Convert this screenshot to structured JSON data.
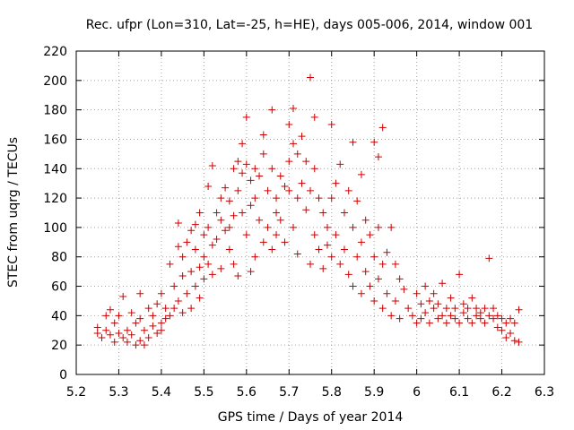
{
  "chart_data": {
    "type": "scatter",
    "title": "Rec. ufpr (Lon=310, Lat=-25, h=HE), days 005-006, 2014, window 001",
    "xlabel": "GPS time / Days of year 2014",
    "ylabel": "STEC from uqrg / TECUs",
    "xlim": [
      5.2,
      6.3
    ],
    "ylim": [
      0,
      220
    ],
    "x_ticks": [
      "5.2",
      "5.3",
      "5.4",
      "5.5",
      "5.6",
      "5.7",
      "5.8",
      "5.9",
      "6",
      "6.1",
      "6.2",
      "6.3"
    ],
    "y_ticks": [
      "0",
      "20",
      "40",
      "60",
      "80",
      "100",
      "120",
      "140",
      "160",
      "180",
      "200",
      "220"
    ],
    "grid": true,
    "marker": "+",
    "color": "#cc0000",
    "series": [
      {
        "points": [
          [
            5.25,
            32
          ],
          [
            5.25,
            28
          ],
          [
            5.26,
            25
          ],
          [
            5.27,
            30
          ],
          [
            5.27,
            40
          ],
          [
            5.28,
            27
          ],
          [
            5.28,
            44
          ],
          [
            5.29,
            22
          ],
          [
            5.29,
            35
          ],
          [
            5.3,
            28
          ],
          [
            5.3,
            40
          ],
          [
            5.31,
            25
          ],
          [
            5.31,
            53
          ],
          [
            5.32,
            30
          ],
          [
            5.32,
            22
          ],
          [
            5.33,
            42
          ],
          [
            5.33,
            27
          ],
          [
            5.34,
            20
          ],
          [
            5.34,
            35
          ],
          [
            5.35,
            38
          ],
          [
            5.35,
            55
          ],
          [
            5.35,
            23
          ],
          [
            5.36,
            30
          ],
          [
            5.36,
            20
          ],
          [
            5.37,
            45
          ],
          [
            5.37,
            25
          ],
          [
            5.38,
            33
          ],
          [
            5.38,
            40
          ],
          [
            5.39,
            28
          ],
          [
            5.39,
            48
          ],
          [
            5.4,
            35
          ],
          [
            5.4,
            55
          ],
          [
            5.4,
            30
          ],
          [
            5.41,
            45
          ],
          [
            5.41,
            38
          ],
          [
            5.42,
            75
          ],
          [
            5.42,
            40
          ],
          [
            5.43,
            60
          ],
          [
            5.43,
            45
          ],
          [
            5.44,
            87
          ],
          [
            5.44,
            103
          ],
          [
            5.44,
            50
          ],
          [
            5.45,
            67
          ],
          [
            5.45,
            80
          ],
          [
            5.45,
            42
          ],
          [
            5.46,
            90
          ],
          [
            5.46,
            55
          ],
          [
            5.47,
            98
          ],
          [
            5.47,
            70
          ],
          [
            5.47,
            45
          ],
          [
            5.48,
            102
          ],
          [
            5.48,
            85
          ],
          [
            5.48,
            60
          ],
          [
            5.49,
            110
          ],
          [
            5.49,
            73
          ],
          [
            5.49,
            52
          ],
          [
            5.5,
            95
          ],
          [
            5.5,
            80
          ],
          [
            5.5,
            65
          ],
          [
            5.51,
            128
          ],
          [
            5.51,
            100
          ],
          [
            5.51,
            75
          ],
          [
            5.52,
            142
          ],
          [
            5.52,
            88
          ],
          [
            5.52,
            68
          ],
          [
            5.53,
            110
          ],
          [
            5.53,
            92
          ],
          [
            5.54,
            120
          ],
          [
            5.54,
            105
          ],
          [
            5.54,
            72
          ],
          [
            5.55,
            127
          ],
          [
            5.55,
            98
          ],
          [
            5.56,
            118
          ],
          [
            5.56,
            85
          ],
          [
            5.56,
            100
          ],
          [
            5.57,
            140
          ],
          [
            5.57,
            108
          ],
          [
            5.57,
            75
          ],
          [
            5.58,
            145
          ],
          [
            5.58,
            125
          ],
          [
            5.58,
            67
          ],
          [
            5.59,
            157
          ],
          [
            5.59,
            137
          ],
          [
            5.59,
            110
          ],
          [
            5.6,
            175
          ],
          [
            5.6,
            143
          ],
          [
            5.6,
            95
          ],
          [
            5.61,
            132
          ],
          [
            5.61,
            115
          ],
          [
            5.61,
            70
          ],
          [
            5.62,
            140
          ],
          [
            5.62,
            120
          ],
          [
            5.62,
            80
          ],
          [
            5.63,
            135
          ],
          [
            5.63,
            105
          ],
          [
            5.64,
            163
          ],
          [
            5.64,
            150
          ],
          [
            5.64,
            90
          ],
          [
            5.65,
            125
          ],
          [
            5.65,
            100
          ],
          [
            5.66,
            180
          ],
          [
            5.66,
            140
          ],
          [
            5.66,
            85
          ],
          [
            5.67,
            120
          ],
          [
            5.67,
            110
          ],
          [
            5.67,
            95
          ],
          [
            5.68,
            135
          ],
          [
            5.68,
            105
          ],
          [
            5.69,
            128
          ],
          [
            5.69,
            90
          ],
          [
            5.7,
            170
          ],
          [
            5.7,
            145
          ],
          [
            5.7,
            125
          ],
          [
            5.71,
            181
          ],
          [
            5.71,
            157
          ],
          [
            5.71,
            100
          ],
          [
            5.72,
            150
          ],
          [
            5.72,
            120
          ],
          [
            5.72,
            82
          ],
          [
            5.73,
            162
          ],
          [
            5.73,
            130
          ],
          [
            5.74,
            145
          ],
          [
            5.74,
            112
          ],
          [
            5.75,
            202
          ],
          [
            5.75,
            125
          ],
          [
            5.75,
            75
          ],
          [
            5.76,
            175
          ],
          [
            5.76,
            140
          ],
          [
            5.76,
            95
          ],
          [
            5.77,
            120
          ],
          [
            5.77,
            85
          ],
          [
            5.78,
            110
          ],
          [
            5.78,
            72
          ],
          [
            5.79,
            100
          ],
          [
            5.79,
            88
          ],
          [
            5.8,
            170
          ],
          [
            5.8,
            120
          ],
          [
            5.8,
            80
          ],
          [
            5.81,
            130
          ],
          [
            5.81,
            95
          ],
          [
            5.82,
            143
          ],
          [
            5.82,
            75
          ],
          [
            5.83,
            110
          ],
          [
            5.83,
            85
          ],
          [
            5.84,
            125
          ],
          [
            5.84,
            68
          ],
          [
            5.85,
            158
          ],
          [
            5.85,
            100
          ],
          [
            5.85,
            60
          ],
          [
            5.86,
            118
          ],
          [
            5.86,
            80
          ],
          [
            5.87,
            136
          ],
          [
            5.87,
            90
          ],
          [
            5.87,
            55
          ],
          [
            5.88,
            105
          ],
          [
            5.88,
            70
          ],
          [
            5.89,
            95
          ],
          [
            5.89,
            60
          ],
          [
            5.9,
            158
          ],
          [
            5.9,
            80
          ],
          [
            5.9,
            50
          ],
          [
            5.91,
            148
          ],
          [
            5.91,
            100
          ],
          [
            5.91,
            65
          ],
          [
            5.92,
            168
          ],
          [
            5.92,
            75
          ],
          [
            5.92,
            45
          ],
          [
            5.93,
            83
          ],
          [
            5.93,
            55
          ],
          [
            5.94,
            100
          ],
          [
            5.94,
            40
          ],
          [
            5.95,
            75
          ],
          [
            5.95,
            50
          ],
          [
            5.96,
            65
          ],
          [
            5.96,
            38
          ],
          [
            5.97,
            58
          ],
          [
            5.98,
            45
          ],
          [
            5.99,
            40
          ],
          [
            6.0,
            55
          ],
          [
            6.0,
            35
          ],
          [
            6.01,
            48
          ],
          [
            6.01,
            38
          ],
          [
            6.02,
            60
          ],
          [
            6.02,
            42
          ],
          [
            6.03,
            50
          ],
          [
            6.03,
            35
          ],
          [
            6.04,
            45
          ],
          [
            6.04,
            55
          ],
          [
            6.05,
            38
          ],
          [
            6.05,
            48
          ],
          [
            6.06,
            40
          ],
          [
            6.06,
            62
          ],
          [
            6.07,
            35
          ],
          [
            6.07,
            45
          ],
          [
            6.08,
            40
          ],
          [
            6.08,
            52
          ],
          [
            6.09,
            38
          ],
          [
            6.09,
            45
          ],
          [
            6.1,
            68
          ],
          [
            6.1,
            35
          ],
          [
            6.11,
            42
          ],
          [
            6.11,
            48
          ],
          [
            6.12,
            38
          ],
          [
            6.12,
            45
          ],
          [
            6.13,
            35
          ],
          [
            6.13,
            52
          ],
          [
            6.14,
            40
          ],
          [
            6.14,
            45
          ],
          [
            6.15,
            38
          ],
          [
            6.15,
            42
          ],
          [
            6.16,
            35
          ],
          [
            6.16,
            45
          ],
          [
            6.17,
            40
          ],
          [
            6.17,
            79
          ],
          [
            6.18,
            38
          ],
          [
            6.18,
            45
          ],
          [
            6.19,
            32
          ],
          [
            6.19,
            40
          ],
          [
            6.2,
            30
          ],
          [
            6.2,
            38
          ],
          [
            6.21,
            25
          ],
          [
            6.21,
            35
          ],
          [
            6.22,
            28
          ],
          [
            6.22,
            38
          ],
          [
            6.23,
            23
          ],
          [
            6.23,
            35
          ],
          [
            6.24,
            22
          ],
          [
            6.24,
            44
          ]
        ]
      }
    ]
  }
}
